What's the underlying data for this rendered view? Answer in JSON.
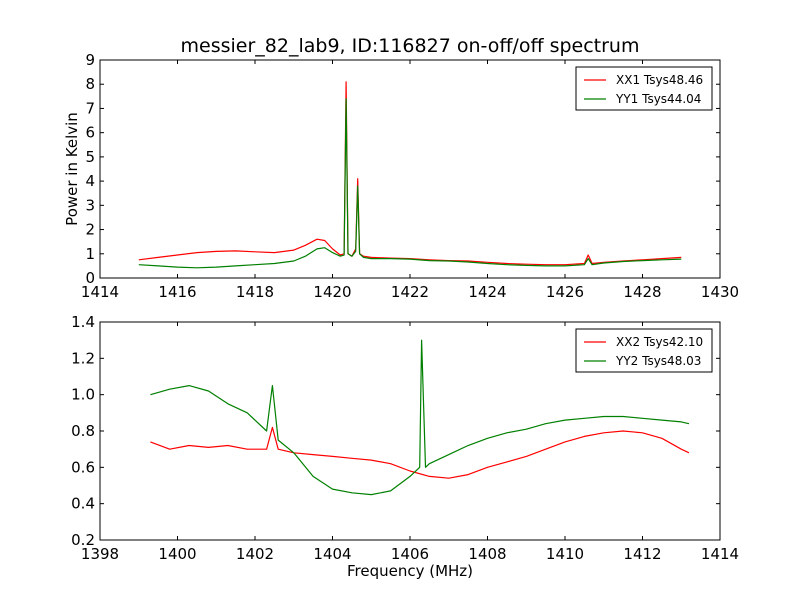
{
  "figure": {
    "title": "messier_82_lab9, ID:116827 on-off/off spectrum"
  },
  "chart_data": [
    {
      "type": "line",
      "title": "messier_82_lab9, ID:116827 on-off/off spectrum",
      "xlabel": "",
      "ylabel": "Power in Kelvin",
      "xlim": [
        1414,
        1430
      ],
      "ylim": [
        0,
        9
      ],
      "xticks": [
        "1414",
        "1416",
        "1418",
        "1420",
        "1422",
        "1424",
        "1426",
        "1428",
        "1430"
      ],
      "yticks": [
        "0",
        "1",
        "2",
        "3",
        "4",
        "5",
        "6",
        "7",
        "8",
        "9"
      ],
      "grid": false,
      "legend_position": "top-right",
      "series": [
        {
          "name": "XX1 Tsys48.46",
          "color": "#ff0000",
          "x": [
            1415.0,
            1415.5,
            1416.0,
            1416.5,
            1417.0,
            1417.5,
            1418.0,
            1418.5,
            1419.0,
            1419.3,
            1419.6,
            1419.8,
            1420.0,
            1420.2,
            1420.3,
            1420.35,
            1420.4,
            1420.5,
            1420.6,
            1420.65,
            1420.7,
            1420.8,
            1421.0,
            1421.5,
            1422.0,
            1422.5,
            1423.0,
            1423.5,
            1424.0,
            1424.5,
            1425.0,
            1425.5,
            1426.0,
            1426.5,
            1426.6,
            1426.7,
            1427.0,
            1427.5,
            1428.0,
            1428.5,
            1429.0
          ],
          "values": [
            0.75,
            0.85,
            0.95,
            1.05,
            1.1,
            1.12,
            1.08,
            1.05,
            1.15,
            1.35,
            1.6,
            1.55,
            1.2,
            0.95,
            1.0,
            8.1,
            1.0,
            0.9,
            1.2,
            4.1,
            1.0,
            0.9,
            0.85,
            0.82,
            0.8,
            0.75,
            0.72,
            0.7,
            0.65,
            0.6,
            0.57,
            0.55,
            0.55,
            0.6,
            0.95,
            0.6,
            0.65,
            0.7,
            0.75,
            0.8,
            0.85
          ]
        },
        {
          "name": "YY1 Tsys44.04",
          "color": "#008000",
          "x": [
            1415.0,
            1415.5,
            1416.0,
            1416.5,
            1417.0,
            1417.5,
            1418.0,
            1418.5,
            1419.0,
            1419.3,
            1419.6,
            1419.8,
            1420.0,
            1420.2,
            1420.3,
            1420.35,
            1420.4,
            1420.5,
            1420.6,
            1420.65,
            1420.7,
            1420.8,
            1421.0,
            1421.5,
            1422.0,
            1422.5,
            1423.0,
            1423.5,
            1424.0,
            1424.5,
            1425.0,
            1425.5,
            1426.0,
            1426.5,
            1426.6,
            1426.7,
            1427.0,
            1427.5,
            1428.0,
            1428.5,
            1429.0
          ],
          "values": [
            0.55,
            0.5,
            0.45,
            0.42,
            0.45,
            0.5,
            0.55,
            0.6,
            0.7,
            0.9,
            1.2,
            1.25,
            1.05,
            0.9,
            0.95,
            7.4,
            1.0,
            0.9,
            1.1,
            3.8,
            1.0,
            0.85,
            0.8,
            0.8,
            0.78,
            0.72,
            0.7,
            0.66,
            0.6,
            0.55,
            0.52,
            0.5,
            0.5,
            0.55,
            0.8,
            0.55,
            0.62,
            0.68,
            0.72,
            0.75,
            0.78
          ]
        }
      ]
    },
    {
      "type": "line",
      "title": "",
      "xlabel": "Frequency (MHz)",
      "ylabel": "",
      "xlim": [
        1398,
        1414
      ],
      "ylim": [
        0.2,
        1.4
      ],
      "xticks": [
        "1398",
        "1400",
        "1402",
        "1404",
        "1406",
        "1408",
        "1410",
        "1412",
        "1414"
      ],
      "yticks": [
        "0.2",
        "0.4",
        "0.6",
        "0.8",
        "1.0",
        "1.2",
        "1.4"
      ],
      "grid": false,
      "legend_position": "top-right",
      "series": [
        {
          "name": "XX2 Tsys42.10",
          "color": "#ff0000",
          "x": [
            1399.3,
            1399.8,
            1400.3,
            1400.8,
            1401.3,
            1401.8,
            1402.3,
            1402.45,
            1402.6,
            1403.0,
            1403.5,
            1404.0,
            1404.5,
            1405.0,
            1405.5,
            1406.0,
            1406.5,
            1407.0,
            1407.5,
            1408.0,
            1408.5,
            1409.0,
            1409.5,
            1410.0,
            1410.5,
            1411.0,
            1411.5,
            1412.0,
            1412.5,
            1413.0,
            1413.2
          ],
          "values": [
            0.74,
            0.7,
            0.72,
            0.71,
            0.72,
            0.7,
            0.7,
            0.82,
            0.7,
            0.68,
            0.67,
            0.66,
            0.65,
            0.64,
            0.62,
            0.58,
            0.55,
            0.54,
            0.56,
            0.6,
            0.63,
            0.66,
            0.7,
            0.74,
            0.77,
            0.79,
            0.8,
            0.79,
            0.76,
            0.7,
            0.68
          ]
        },
        {
          "name": "YY2 Tsys48.03",
          "color": "#008000",
          "x": [
            1399.3,
            1399.8,
            1400.3,
            1400.8,
            1401.3,
            1401.8,
            1402.3,
            1402.45,
            1402.6,
            1403.0,
            1403.5,
            1404.0,
            1404.5,
            1405.0,
            1405.5,
            1406.0,
            1406.25,
            1406.3,
            1406.4,
            1406.5,
            1407.0,
            1407.5,
            1408.0,
            1408.5,
            1409.0,
            1409.5,
            1410.0,
            1410.5,
            1411.0,
            1411.5,
            1412.0,
            1412.5,
            1413.0,
            1413.2
          ],
          "values": [
            1.0,
            1.03,
            1.05,
            1.02,
            0.95,
            0.9,
            0.8,
            1.05,
            0.75,
            0.68,
            0.55,
            0.48,
            0.46,
            0.45,
            0.47,
            0.55,
            0.6,
            1.3,
            0.6,
            0.62,
            0.67,
            0.72,
            0.76,
            0.79,
            0.81,
            0.84,
            0.86,
            0.87,
            0.88,
            0.88,
            0.87,
            0.86,
            0.85,
            0.84
          ]
        }
      ]
    }
  ]
}
